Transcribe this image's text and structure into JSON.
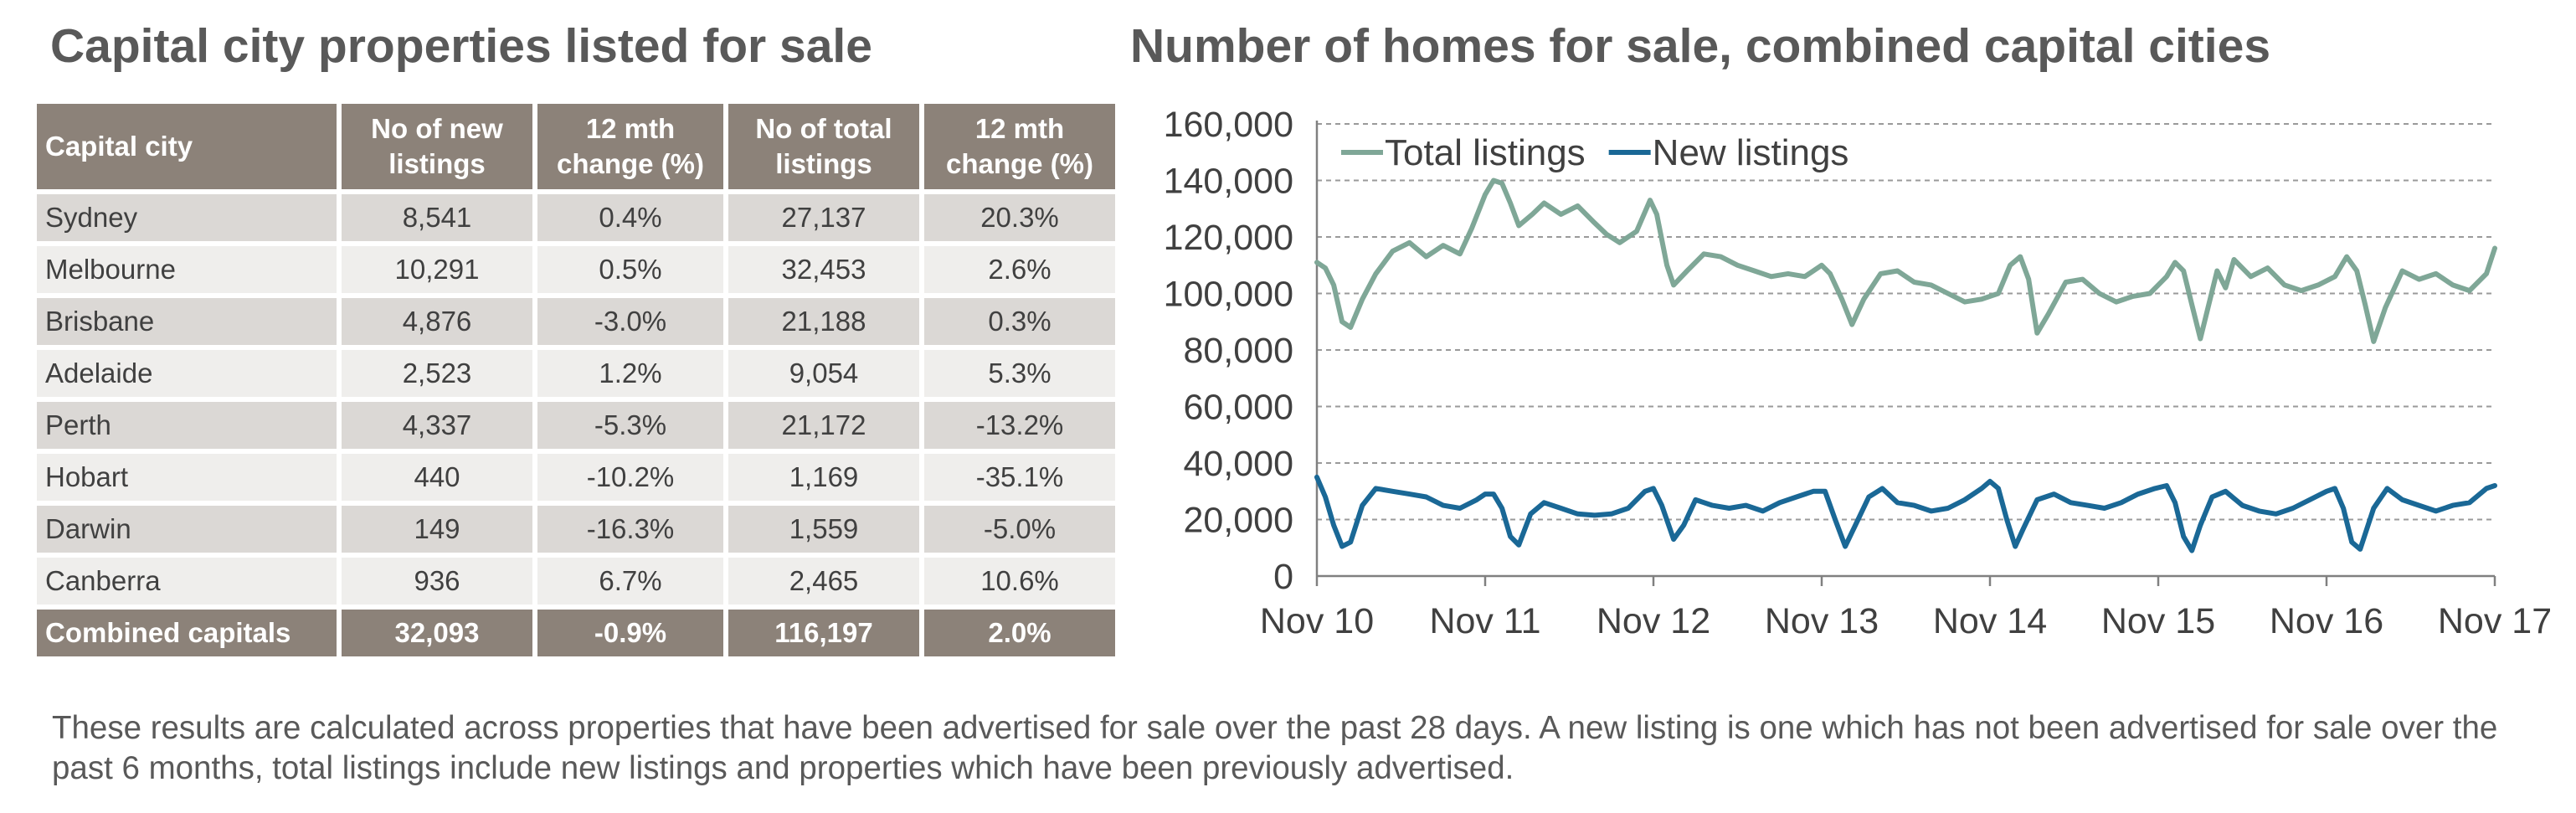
{
  "left_title": "Capital city properties listed for sale",
  "right_title": "Number of homes for sale, combined capital cities",
  "table": {
    "headers": [
      "Capital city",
      "No of new listings",
      "12 mth change (%)",
      "No of total listings",
      "12 mth change (%)"
    ],
    "rows": [
      [
        "Sydney",
        "8,541",
        "0.4%",
        "27,137",
        "20.3%"
      ],
      [
        "Melbourne",
        "10,291",
        "0.5%",
        "32,453",
        "2.6%"
      ],
      [
        "Brisbane",
        "4,876",
        "-3.0%",
        "21,188",
        "0.3%"
      ],
      [
        "Adelaide",
        "2,523",
        "1.2%",
        "9,054",
        "5.3%"
      ],
      [
        "Perth",
        "4,337",
        "-5.3%",
        "21,172",
        "-13.2%"
      ],
      [
        "Hobart",
        "440",
        "-10.2%",
        "1,169",
        "-35.1%"
      ],
      [
        "Darwin",
        "149",
        "-16.3%",
        "1,559",
        "-5.0%"
      ],
      [
        "Canberra",
        "936",
        "6.7%",
        "2,465",
        "10.6%"
      ]
    ],
    "footer": [
      "Combined capitals",
      "32,093",
      "-0.9%",
      "116,197",
      "2.0%"
    ]
  },
  "footnote": "These results are calculated across properties that have been advertised for sale over the past 28 days.  A new listing is one which has not been advertised for sale over the past 6 months, total listings include new listings and properties which have been previously advertised.",
  "colors": {
    "total": "#7fa797",
    "new": "#1a6896",
    "table_header": "#8c8279",
    "row_dark": "#dbd8d5",
    "row_light": "#efeeec"
  },
  "chart_data": {
    "type": "line",
    "title": "",
    "xlabel": "",
    "ylabel": "",
    "x_ticks": [
      "Nov 10",
      "Nov 11",
      "Nov 12",
      "Nov 13",
      "Nov 14",
      "Nov 15",
      "Nov 16",
      "Nov 17"
    ],
    "y_ticks": [
      "0",
      "20,000",
      "40,000",
      "60,000",
      "80,000",
      "100,000",
      "120,000",
      "140,000",
      "160,000"
    ],
    "ylim": [
      0,
      160000
    ],
    "xlim": [
      0,
      7
    ],
    "grid": true,
    "legend_position": "top-left",
    "series": [
      {
        "name": "Total listings",
        "color": "#7fa797",
        "points": [
          [
            0,
            111000
          ],
          [
            0.05,
            109000
          ],
          [
            0.1,
            103000
          ],
          [
            0.15,
            90000
          ],
          [
            0.2,
            88000
          ],
          [
            0.27,
            98000
          ],
          [
            0.35,
            107000
          ],
          [
            0.45,
            115000
          ],
          [
            0.55,
            118000
          ],
          [
            0.65,
            113000
          ],
          [
            0.75,
            117000
          ],
          [
            0.85,
            114000
          ],
          [
            0.92,
            123000
          ],
          [
            1.0,
            135000
          ],
          [
            1.05,
            140000
          ],
          [
            1.1,
            139000
          ],
          [
            1.15,
            132000
          ],
          [
            1.2,
            124000
          ],
          [
            1.28,
            128000
          ],
          [
            1.35,
            132000
          ],
          [
            1.45,
            128000
          ],
          [
            1.55,
            131000
          ],
          [
            1.65,
            125000
          ],
          [
            1.72,
            121000
          ],
          [
            1.8,
            118000
          ],
          [
            1.9,
            122000
          ],
          [
            1.98,
            133000
          ],
          [
            2.02,
            128000
          ],
          [
            2.08,
            110000
          ],
          [
            2.12,
            103000
          ],
          [
            2.2,
            108000
          ],
          [
            2.3,
            114000
          ],
          [
            2.4,
            113000
          ],
          [
            2.5,
            110000
          ],
          [
            2.6,
            108000
          ],
          [
            2.7,
            106000
          ],
          [
            2.8,
            107000
          ],
          [
            2.9,
            106000
          ],
          [
            3.0,
            110000
          ],
          [
            3.05,
            107000
          ],
          [
            3.12,
            98000
          ],
          [
            3.18,
            89000
          ],
          [
            3.25,
            98000
          ],
          [
            3.35,
            107000
          ],
          [
            3.45,
            108000
          ],
          [
            3.55,
            104000
          ],
          [
            3.65,
            103000
          ],
          [
            3.75,
            100000
          ],
          [
            3.85,
            97000
          ],
          [
            3.95,
            98000
          ],
          [
            4.05,
            100000
          ],
          [
            4.12,
            110000
          ],
          [
            4.18,
            113000
          ],
          [
            4.23,
            105000
          ],
          [
            4.28,
            86000
          ],
          [
            4.35,
            93000
          ],
          [
            4.45,
            104000
          ],
          [
            4.55,
            105000
          ],
          [
            4.65,
            100000
          ],
          [
            4.75,
            97000
          ],
          [
            4.85,
            99000
          ],
          [
            4.95,
            100000
          ],
          [
            5.05,
            106000
          ],
          [
            5.1,
            111000
          ],
          [
            5.15,
            108000
          ],
          [
            5.2,
            96000
          ],
          [
            5.25,
            84000
          ],
          [
            5.3,
            96000
          ],
          [
            5.35,
            108000
          ],
          [
            5.4,
            102000
          ],
          [
            5.45,
            112000
          ],
          [
            5.55,
            106000
          ],
          [
            5.65,
            109000
          ],
          [
            5.75,
            103000
          ],
          [
            5.85,
            101000
          ],
          [
            5.95,
            103000
          ],
          [
            6.05,
            106000
          ],
          [
            6.12,
            113000
          ],
          [
            6.18,
            108000
          ],
          [
            6.23,
            96000
          ],
          [
            6.28,
            83000
          ],
          [
            6.35,
            95000
          ],
          [
            6.45,
            108000
          ],
          [
            6.55,
            105000
          ],
          [
            6.65,
            107000
          ],
          [
            6.75,
            103000
          ],
          [
            6.85,
            101000
          ],
          [
            6.95,
            107000
          ],
          [
            7.0,
            116000
          ]
        ]
      },
      {
        "name": "New listings",
        "color": "#1a6896",
        "points": [
          [
            0,
            35000
          ],
          [
            0.05,
            28000
          ],
          [
            0.1,
            18000
          ],
          [
            0.15,
            10500
          ],
          [
            0.2,
            12000
          ],
          [
            0.27,
            25000
          ],
          [
            0.35,
            31000
          ],
          [
            0.45,
            30000
          ],
          [
            0.55,
            29000
          ],
          [
            0.65,
            28000
          ],
          [
            0.75,
            25000
          ],
          [
            0.85,
            24000
          ],
          [
            0.95,
            27000
          ],
          [
            1.0,
            29000
          ],
          [
            1.05,
            29000
          ],
          [
            1.1,
            24000
          ],
          [
            1.15,
            14000
          ],
          [
            1.2,
            11000
          ],
          [
            1.27,
            22000
          ],
          [
            1.35,
            26000
          ],
          [
            1.45,
            24000
          ],
          [
            1.55,
            22000
          ],
          [
            1.65,
            21500
          ],
          [
            1.75,
            22000
          ],
          [
            1.85,
            24000
          ],
          [
            1.95,
            30000
          ],
          [
            2.0,
            31000
          ],
          [
            2.05,
            25000
          ],
          [
            2.12,
            13000
          ],
          [
            2.18,
            18000
          ],
          [
            2.25,
            27000
          ],
          [
            2.35,
            25000
          ],
          [
            2.45,
            24000
          ],
          [
            2.55,
            25000
          ],
          [
            2.65,
            23000
          ],
          [
            2.75,
            26000
          ],
          [
            2.85,
            28000
          ],
          [
            2.95,
            30000
          ],
          [
            3.02,
            30000
          ],
          [
            3.08,
            20000
          ],
          [
            3.14,
            10500
          ],
          [
            3.2,
            18000
          ],
          [
            3.28,
            28000
          ],
          [
            3.36,
            31000
          ],
          [
            3.45,
            26000
          ],
          [
            3.55,
            25000
          ],
          [
            3.65,
            23000
          ],
          [
            3.75,
            24000
          ],
          [
            3.85,
            27000
          ],
          [
            3.95,
            31000
          ],
          [
            4.0,
            33500
          ],
          [
            4.05,
            31000
          ],
          [
            4.1,
            20000
          ],
          [
            4.15,
            10500
          ],
          [
            4.2,
            17000
          ],
          [
            4.28,
            27000
          ],
          [
            4.38,
            29000
          ],
          [
            4.48,
            26000
          ],
          [
            4.58,
            25000
          ],
          [
            4.68,
            24000
          ],
          [
            4.78,
            26000
          ],
          [
            4.88,
            29000
          ],
          [
            4.98,
            31000
          ],
          [
            5.05,
            32000
          ],
          [
            5.1,
            26000
          ],
          [
            5.15,
            14000
          ],
          [
            5.2,
            9000
          ],
          [
            5.25,
            18000
          ],
          [
            5.32,
            28000
          ],
          [
            5.4,
            30000
          ],
          [
            5.5,
            25000
          ],
          [
            5.6,
            23000
          ],
          [
            5.7,
            22000
          ],
          [
            5.8,
            24000
          ],
          [
            5.9,
            27000
          ],
          [
            6.0,
            30000
          ],
          [
            6.05,
            31000
          ],
          [
            6.1,
            24000
          ],
          [
            6.15,
            12000
          ],
          [
            6.2,
            9500
          ],
          [
            6.28,
            24000
          ],
          [
            6.36,
            31000
          ],
          [
            6.45,
            27000
          ],
          [
            6.55,
            25000
          ],
          [
            6.65,
            23000
          ],
          [
            6.75,
            25000
          ],
          [
            6.85,
            26000
          ],
          [
            6.95,
            31000
          ],
          [
            7.0,
            32000
          ]
        ]
      }
    ]
  }
}
